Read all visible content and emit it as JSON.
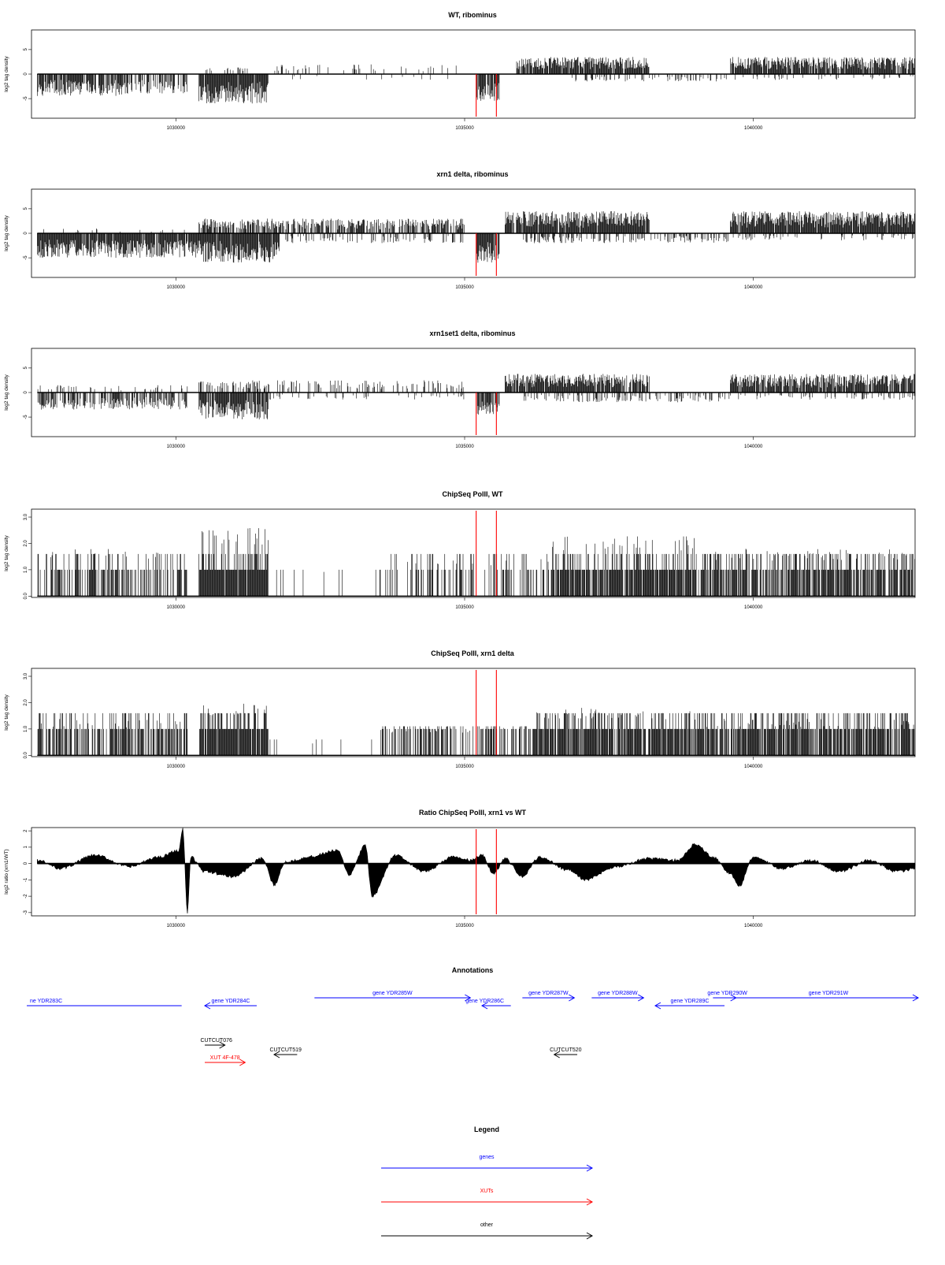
{
  "x_axis": {
    "range": [
      1027500,
      1042800
    ],
    "ticks": [
      1030000,
      1035000,
      1040000
    ],
    "tick_labels": [
      "1030000",
      "1035000",
      "1040000"
    ]
  },
  "red_markers": [
    1035200,
    1035550
  ],
  "colors": {
    "genes": "#0000ff",
    "xuts": "#ff0000",
    "other": "#000000",
    "marker": "#ff0000",
    "data": "#000000"
  },
  "chart_data": [
    {
      "id": "wt",
      "type": "bar",
      "title": "WT, ribominus",
      "ylabel": "log2 tag density",
      "ylim": [
        -9,
        9
      ],
      "yticks": [
        -5,
        0,
        5
      ],
      "ytick_labels": [
        "-5",
        "0",
        "5"
      ],
      "segments": [
        {
          "from": 1027600,
          "to": 1029200,
          "sign": -1,
          "amp": 4.5,
          "density": 0.85
        },
        {
          "from": 1029200,
          "to": 1030200,
          "sign": -1,
          "amp": 4.0,
          "density": 0.6
        },
        {
          "from": 1030400,
          "to": 1031600,
          "sign": -1,
          "amp": 6.0,
          "density": 0.95
        },
        {
          "from": 1030500,
          "to": 1031300,
          "sign": 1,
          "amp": 1.5,
          "density": 0.3
        },
        {
          "from": 1031600,
          "to": 1035000,
          "sign": 1,
          "amp": 2.0,
          "density": 0.12
        },
        {
          "from": 1032000,
          "to": 1035000,
          "sign": -1,
          "amp": 1.2,
          "density": 0.06
        },
        {
          "from": 1035200,
          "to": 1035600,
          "sign": -1,
          "amp": 5.5,
          "density": 0.8
        },
        {
          "from": 1035900,
          "to": 1038200,
          "sign": 1,
          "amp": 3.5,
          "density": 0.9
        },
        {
          "from": 1036800,
          "to": 1039600,
          "sign": -1,
          "amp": 1.5,
          "density": 0.25
        },
        {
          "from": 1039600,
          "to": 1042800,
          "sign": 1,
          "amp": 3.5,
          "density": 0.9
        },
        {
          "from": 1039600,
          "to": 1042800,
          "sign": -1,
          "amp": 1.2,
          "density": 0.12
        }
      ]
    },
    {
      "id": "xrn1",
      "type": "bar",
      "title": "xrn1 delta, ribominus",
      "ylabel": "log2 tag density",
      "ylim": [
        -9,
        9
      ],
      "yticks": [
        -5,
        0,
        5
      ],
      "ytick_labels": [
        "-5",
        "0",
        "5"
      ],
      "segments": [
        {
          "from": 1027600,
          "to": 1030400,
          "sign": -1,
          "amp": 5.0,
          "density": 0.95
        },
        {
          "from": 1027600,
          "to": 1030200,
          "sign": 1,
          "amp": 1.0,
          "density": 0.05
        },
        {
          "from": 1030400,
          "to": 1031800,
          "sign": -1,
          "amp": 6.0,
          "density": 0.95
        },
        {
          "from": 1030400,
          "to": 1035000,
          "sign": 1,
          "amp": 3.0,
          "density": 0.7
        },
        {
          "from": 1031800,
          "to": 1035000,
          "sign": -1,
          "amp": 2.0,
          "density": 0.25
        },
        {
          "from": 1035200,
          "to": 1035600,
          "sign": -1,
          "amp": 6.0,
          "density": 0.9
        },
        {
          "from": 1035700,
          "to": 1038200,
          "sign": 1,
          "amp": 4.5,
          "density": 0.95
        },
        {
          "from": 1036000,
          "to": 1039600,
          "sign": -1,
          "amp": 2.0,
          "density": 0.35
        },
        {
          "from": 1039600,
          "to": 1042800,
          "sign": 1,
          "amp": 4.5,
          "density": 0.95
        },
        {
          "from": 1039600,
          "to": 1042800,
          "sign": -1,
          "amp": 1.5,
          "density": 0.15
        }
      ]
    },
    {
      "id": "xrn1set1",
      "type": "bar",
      "title": "xrn1set1 delta, ribominus",
      "ylabel": "log2 tag density",
      "ylim": [
        -9,
        9
      ],
      "yticks": [
        -5,
        0,
        5
      ],
      "ytick_labels": [
        "-5",
        "0",
        "5"
      ],
      "segments": [
        {
          "from": 1027600,
          "to": 1030200,
          "sign": -1,
          "amp": 3.5,
          "density": 0.6
        },
        {
          "from": 1027600,
          "to": 1030200,
          "sign": 1,
          "amp": 1.5,
          "density": 0.1
        },
        {
          "from": 1030400,
          "to": 1031600,
          "sign": -1,
          "amp": 5.5,
          "density": 0.9
        },
        {
          "from": 1030400,
          "to": 1031600,
          "sign": 1,
          "amp": 2.5,
          "density": 0.4
        },
        {
          "from": 1031600,
          "to": 1035000,
          "sign": 1,
          "amp": 2.5,
          "density": 0.25
        },
        {
          "from": 1031600,
          "to": 1035000,
          "sign": -1,
          "amp": 1.5,
          "density": 0.1
        },
        {
          "from": 1035200,
          "to": 1035600,
          "sign": -1,
          "amp": 4.5,
          "density": 0.8
        },
        {
          "from": 1035700,
          "to": 1038200,
          "sign": 1,
          "amp": 3.8,
          "density": 0.9
        },
        {
          "from": 1036000,
          "to": 1039600,
          "sign": -1,
          "amp": 2.0,
          "density": 0.3
        },
        {
          "from": 1039600,
          "to": 1042800,
          "sign": 1,
          "amp": 3.8,
          "density": 0.9
        },
        {
          "from": 1039600,
          "to": 1042800,
          "sign": -1,
          "amp": 1.5,
          "density": 0.15
        }
      ]
    },
    {
      "id": "chip_wt",
      "type": "bar",
      "title": "ChipSeq PolII, WT",
      "ylabel": "log2 tag density",
      "ylim": [
        -0.05,
        3.3
      ],
      "yticks": [
        0,
        1,
        2,
        3
      ],
      "ytick_labels": [
        "0.0",
        "1.0",
        "2.0",
        "3.0"
      ],
      "segments": [
        {
          "from": 1027600,
          "to": 1030200,
          "sign": 1,
          "amp": 1.8,
          "density": 0.55
        },
        {
          "from": 1030400,
          "to": 1031600,
          "sign": 1,
          "amp": 2.6,
          "density": 0.95
        },
        {
          "from": 1031600,
          "to": 1033500,
          "sign": 1,
          "amp": 1.2,
          "density": 0.06
        },
        {
          "from": 1033500,
          "to": 1036500,
          "sign": 1,
          "amp": 1.5,
          "density": 0.35
        },
        {
          "from": 1036500,
          "to": 1039000,
          "sign": 1,
          "amp": 2.3,
          "density": 0.9
        },
        {
          "from": 1039000,
          "to": 1042800,
          "sign": 1,
          "amp": 1.8,
          "density": 0.75
        }
      ]
    },
    {
      "id": "chip_xrn1",
      "type": "bar",
      "title": "ChipSeq PolII, xrn1 delta",
      "ylabel": "log2 tag density",
      "ylim": [
        -0.05,
        3.3
      ],
      "yticks": [
        0,
        1,
        2,
        3
      ],
      "ytick_labels": [
        "0.0",
        "1.0",
        "2.0",
        "3.0"
      ],
      "segments": [
        {
          "from": 1027600,
          "to": 1030200,
          "sign": 1,
          "amp": 1.4,
          "density": 0.65
        },
        {
          "from": 1030400,
          "to": 1031600,
          "sign": 1,
          "amp": 2.0,
          "density": 0.95
        },
        {
          "from": 1031600,
          "to": 1033500,
          "sign": 1,
          "amp": 0.6,
          "density": 0.05
        },
        {
          "from": 1033500,
          "to": 1036200,
          "sign": 1,
          "amp": 1.1,
          "density": 0.45
        },
        {
          "from": 1036200,
          "to": 1039000,
          "sign": 1,
          "amp": 1.8,
          "density": 0.85
        },
        {
          "from": 1039000,
          "to": 1042800,
          "sign": 1,
          "amp": 1.4,
          "density": 0.8
        }
      ]
    },
    {
      "id": "ratio",
      "type": "area",
      "title": "Ratio ChipSeq PolII, xrn1 vs WT",
      "ylabel": "log2 ratio (xrn1/WT)",
      "ylim": [
        -3.2,
        2.2
      ],
      "yticks": [
        -3,
        -2,
        -1,
        0,
        1,
        2
      ],
      "ytick_labels": [
        "-3",
        "-2",
        "-1",
        "0",
        "1",
        "2"
      ],
      "x": [
        1027600,
        1028000,
        1028600,
        1029200,
        1029700,
        1030050,
        1030120,
        1030200,
        1030260,
        1030500,
        1031000,
        1031500,
        1031700,
        1031900,
        1032300,
        1032800,
        1033000,
        1033280,
        1033400,
        1033800,
        1034300,
        1034800,
        1035100,
        1035300,
        1035500,
        1035700,
        1036000,
        1036300,
        1036800,
        1037100,
        1037600,
        1038200,
        1038700,
        1039000,
        1039300,
        1039600,
        1039750,
        1040000,
        1040500,
        1041000,
        1041500,
        1042000,
        1042500,
        1042800
      ],
      "y": [
        0.2,
        -0.3,
        0.5,
        -0.2,
        0.4,
        0.8,
        2.1,
        -3.0,
        0.4,
        -0.5,
        -0.8,
        0.3,
        -1.3,
        0.1,
        0.4,
        0.8,
        -0.7,
        1.1,
        -2.0,
        0.5,
        -0.5,
        0.4,
        0.2,
        0.5,
        -0.6,
        0.3,
        -0.8,
        0.4,
        -0.4,
        -1.0,
        -0.2,
        0.3,
        0.2,
        1.2,
        0.4,
        -0.6,
        -1.4,
        0.4,
        -0.3,
        0.2,
        -0.5,
        0.2,
        -0.5,
        -0.3
      ]
    }
  ],
  "annotations": {
    "title": "Annotations",
    "genes": [
      {
        "label": "ne YDR283C",
        "from": 1027400,
        "to": 1030100,
        "row": 2,
        "dir": "none",
        "label_x": 1027450,
        "anchor": "start"
      },
      {
        "label": "gene YDR284C",
        "from": 1030500,
        "to": 1031400,
        "row": 2,
        "dir": "left",
        "label_x": 1030950,
        "anchor": "middle"
      },
      {
        "label": "gene YDR285W",
        "from": 1032400,
        "to": 1035100,
        "row": 1,
        "dir": "right",
        "label_x": 1033750,
        "anchor": "middle"
      },
      {
        "label": "gene YDR286C",
        "from": 1035300,
        "to": 1035800,
        "row": 2,
        "dir": "left",
        "label_x": 1035350,
        "anchor": "middle"
      },
      {
        "label": "gene YDR287W",
        "from": 1036000,
        "to": 1036900,
        "row": 1,
        "dir": "right",
        "label_x": 1036450,
        "anchor": "middle"
      },
      {
        "label": "gene YDR288W",
        "from": 1037200,
        "to": 1038100,
        "row": 1,
        "dir": "right",
        "label_x": 1037650,
        "anchor": "middle"
      },
      {
        "label": "gene YDR289C",
        "from": 1038300,
        "to": 1039500,
        "row": 2,
        "dir": "left",
        "label_x": 1038900,
        "anchor": "middle"
      },
      {
        "label": "gene YDR290W",
        "from": 1039300,
        "to": 1039700,
        "row": 1,
        "dir": "right",
        "label_x": 1039550,
        "anchor": "middle"
      },
      {
        "label": "gene YDR291W",
        "from": 1039700,
        "to": 1042900,
        "row": 1,
        "dir": "right",
        "label_x": 1041300,
        "anchor": "middle"
      }
    ],
    "cuts": [
      {
        "label": "CUTCUT076",
        "from": 1030500,
        "to": 1030850,
        "row": 3,
        "dir": "right",
        "label_x": 1030700,
        "anchor": "middle"
      },
      {
        "label": "CUTCUT519",
        "from": 1031700,
        "to": 1032100,
        "row": 4,
        "dir": "left",
        "label_x": 1031900,
        "anchor": "middle"
      },
      {
        "label": "CUTCUT520",
        "from": 1036550,
        "to": 1036950,
        "row": 4,
        "dir": "left",
        "label_x": 1036750,
        "anchor": "middle"
      }
    ],
    "xuts": [
      {
        "label": "XUT 4F-478",
        "from": 1030500,
        "to": 1031200,
        "row": 5,
        "dir": "right",
        "label_x": 1030850,
        "anchor": "middle"
      }
    ]
  },
  "legend": {
    "title": "Legend",
    "items": [
      {
        "label": "genes",
        "color": "#0000ff"
      },
      {
        "label": "XUTs",
        "color": "#ff0000"
      },
      {
        "label": "other",
        "color": "#000000"
      }
    ]
  }
}
